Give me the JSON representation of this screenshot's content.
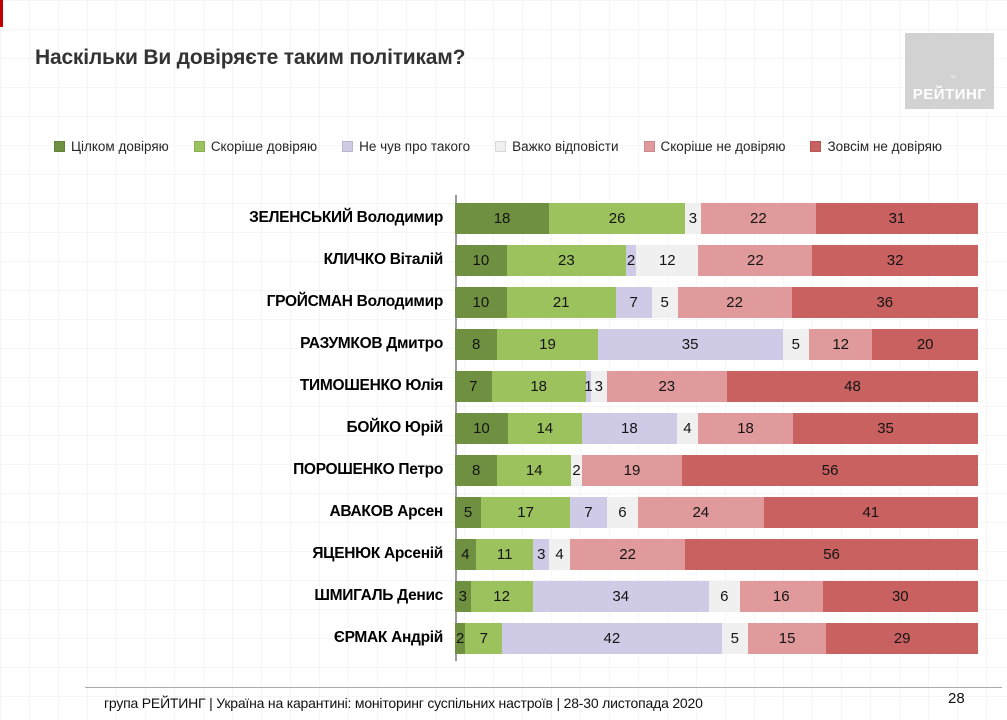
{
  "page": {
    "title": "Наскільки Ви довіряєте таким політикам?",
    "logo_text": "РЕЙТИНГ",
    "logo_tm": "™",
    "footer": "група РЕЙТИНГ | Україна на карантині: моніторинг суспільних настроїв | 28-30 листопада 2020",
    "page_number": "28"
  },
  "colors": {
    "fully_trust": "#6e9040",
    "rather_trust": "#9cc25e",
    "not_heard": "#cfcbe6",
    "hard_to_answer": "#f0f0f0",
    "rather_not_trust": "#e09a9b",
    "not_trust_at_all": "#c96160",
    "accent_red": "#c00000",
    "logo_bg": "#d2d2d2"
  },
  "chart_data": {
    "type": "bar",
    "orientation": "horizontal",
    "stacked": true,
    "units": "percent",
    "xlim": [
      0,
      100
    ],
    "title": "Наскільки Ви довіряєте таким політикам?",
    "legend_position": "top",
    "grid": false,
    "categories": [
      "ЗЕЛЕНСЬКИЙ Володимир",
      "КЛИЧКО Віталій",
      "ГРОЙСМАН Володимир",
      "РАЗУМКОВ Дмитро",
      "ТИМОШЕНКО Юлія",
      "БОЙКО Юрій",
      "ПОРОШЕНКО Петро",
      "АВАКОВ Арсен",
      "ЯЦЕНЮК Арсеній",
      "ШМИГАЛЬ Денис",
      "ЄРМАК Андрій"
    ],
    "series": [
      {
        "name": "Цілком довіряю",
        "color_key": "fully_trust",
        "values": [
          18,
          10,
          10,
          8,
          7,
          10,
          8,
          5,
          4,
          3,
          2
        ]
      },
      {
        "name": "Скоріше довіряю",
        "color_key": "rather_trust",
        "values": [
          26,
          23,
          21,
          19,
          18,
          14,
          14,
          17,
          11,
          12,
          7
        ]
      },
      {
        "name": "Не чув про такого",
        "color_key": "not_heard",
        "values": [
          0,
          2,
          7,
          35,
          1,
          18,
          0,
          7,
          3,
          34,
          42
        ]
      },
      {
        "name": "Важко відповісти",
        "color_key": "hard_to_answer",
        "values": [
          3,
          12,
          5,
          5,
          3,
          4,
          2,
          6,
          4,
          6,
          5
        ]
      },
      {
        "name": "Скоріше не довіряю",
        "color_key": "rather_not_trust",
        "values": [
          22,
          22,
          22,
          12,
          23,
          18,
          19,
          24,
          22,
          16,
          15
        ]
      },
      {
        "name": "Зовсім не довіряю",
        "color_key": "not_trust_at_all",
        "values": [
          31,
          32,
          36,
          20,
          48,
          35,
          56,
          41,
          56,
          30,
          29
        ]
      }
    ]
  }
}
